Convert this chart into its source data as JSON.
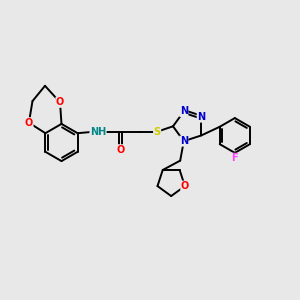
{
  "background_color": "#e8e8e8",
  "fig_width": 3.0,
  "fig_height": 3.0,
  "dpi": 100,
  "bond_color": "#000000",
  "bond_lw": 1.4,
  "atom_colors": {
    "O": "#ff0000",
    "N": "#0000cc",
    "S": "#cccc00",
    "F": "#ff44ff",
    "NH": "#008888",
    "C": "#000000"
  },
  "font_size": 7.0
}
